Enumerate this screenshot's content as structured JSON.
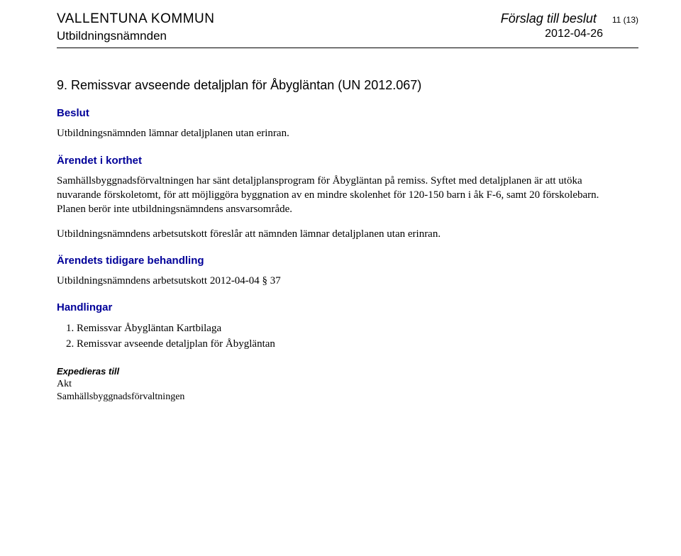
{
  "header": {
    "org_name": "VALLENTUNA KOMMUN",
    "committee": "Utbildningsnämnden",
    "doc_title": "Förslag till beslut",
    "page_no": "11 (13)",
    "doc_date": "2012-04-26"
  },
  "item": {
    "heading": "9.  Remissvar avseende detaljplan för Åbygläntan (UN 2012.067)"
  },
  "sections": {
    "beslut_heading": "Beslut",
    "beslut_text": "Utbildningsnämnden lämnar detaljplanen utan erinran.",
    "arendet_heading": "Ärendet i korthet",
    "arendet_p1": "Samhällsbyggnadsförvaltningen har sänt detaljplansprogram för Åbygläntan på remiss. Syftet med detaljplanen är att utöka nuvarande förskoletomt, för att möjliggöra byggnation av en mindre skolenhet för 120-150 barn i åk F-6, samt 20 förskolebarn. Planen berör inte utbildningsnämndens ansvarsområde.",
    "arendet_p2": "Utbildningsnämndens arbetsutskott föreslår att nämnden lämnar detaljplanen utan erinran.",
    "tidigare_heading": "Ärendets tidigare behandling",
    "tidigare_text": "Utbildningsnämndens arbetsutskott 2012-04-04 § 37",
    "handlingar_heading": "Handlingar",
    "handlingar": [
      "Remissvar Åbygläntan Kartbilaga",
      "Remissvar avseende detaljplan för Åbygläntan"
    ],
    "expedieras_heading": "Expedieras till",
    "expedieras": [
      "Akt",
      "Samhällsbyggnadsförvaltningen"
    ]
  },
  "colors": {
    "heading_blue": "#000099",
    "text_black": "#000000",
    "background": "#ffffff"
  }
}
